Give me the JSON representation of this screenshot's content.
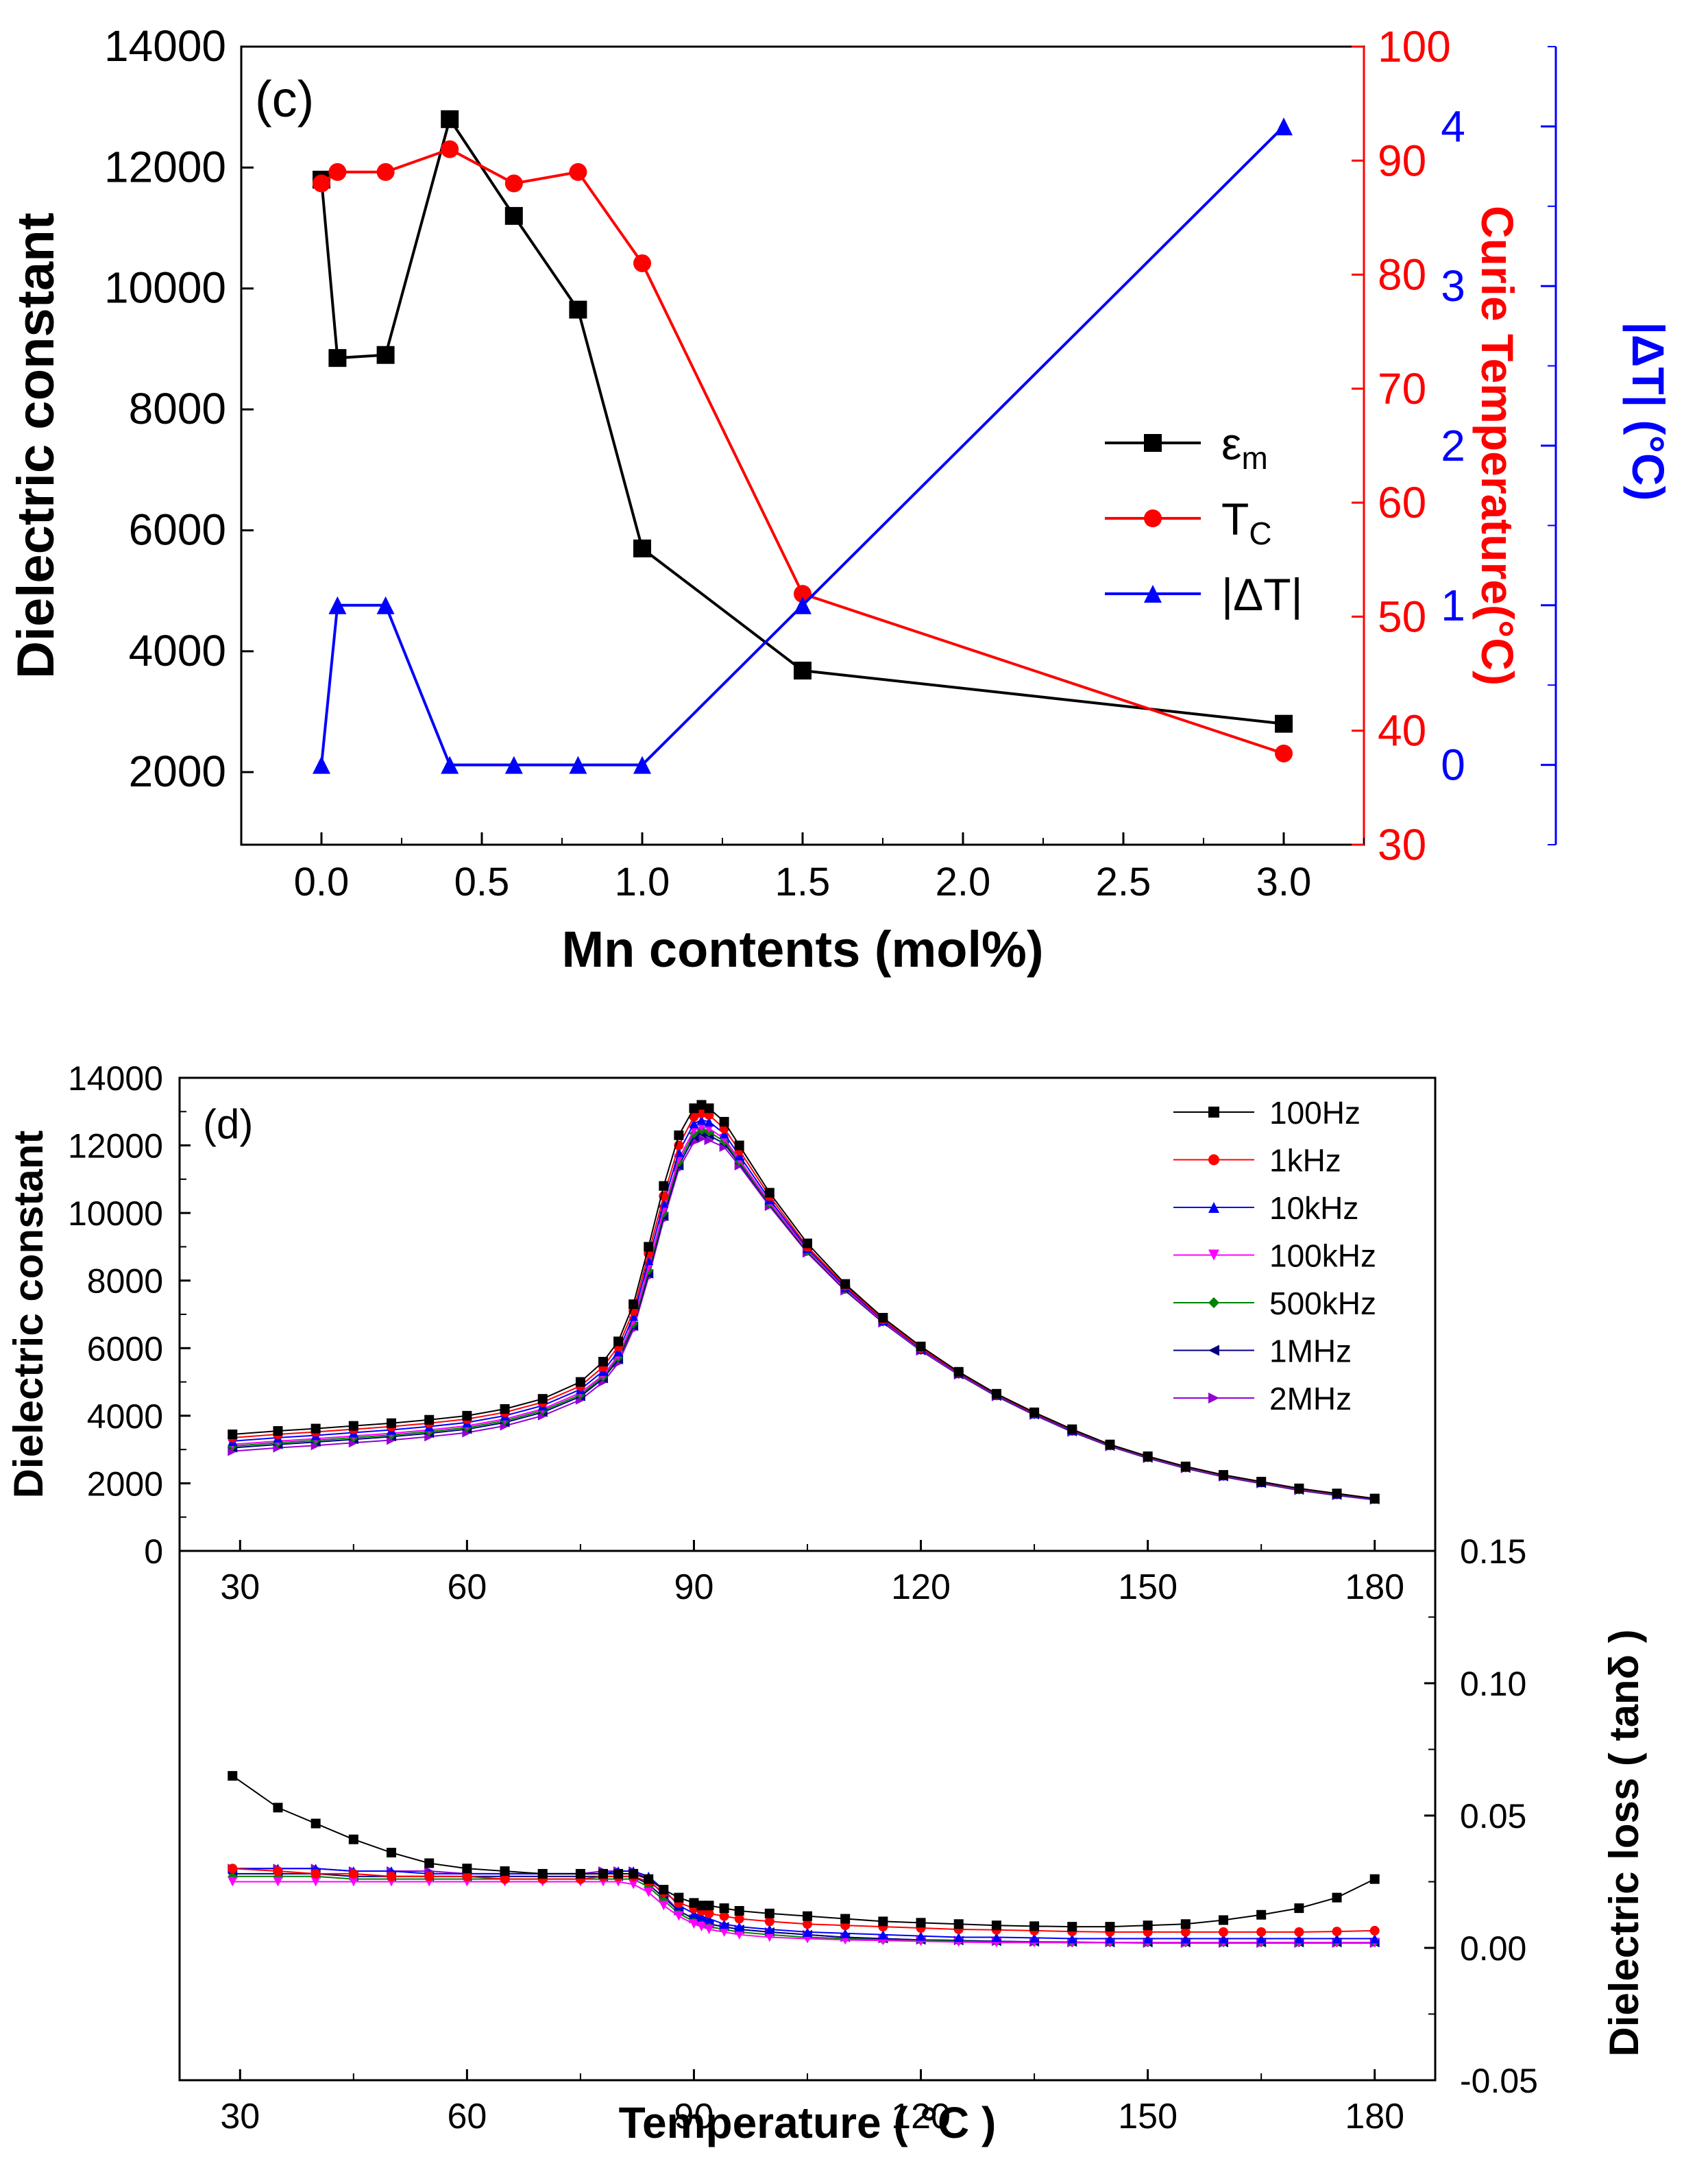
{
  "chart_data": [
    {
      "type": "line",
      "panel_label": "(c)",
      "xlabel": "Mn contents (mol%)",
      "xlim": [
        -0.25,
        3.25
      ],
      "xticks": [
        "0.0",
        "0.5",
        "1.0",
        "1.5",
        "2.0",
        "2.5",
        "3.0"
      ],
      "axes": {
        "left": {
          "label": "Dielectric constant",
          "ylim": [
            800,
            14000
          ],
          "ticks": [
            "2000",
            "4000",
            "6000",
            "8000",
            "10000",
            "12000",
            "14000"
          ],
          "color": "#000000"
        },
        "right1": {
          "label": "Curie Temperature(°C)",
          "ylim": [
            30,
            100
          ],
          "ticks": [
            "30",
            "40",
            "50",
            "60",
            "70",
            "80",
            "90",
            "100"
          ],
          "color": "#ff0000"
        },
        "right2": {
          "label": "|ΔT| (°C)",
          "ylim": [
            -0.5,
            4.5
          ],
          "ticks": [
            "0",
            "1",
            "2",
            "3",
            "4"
          ],
          "color": "#0000ff"
        }
      },
      "series": [
        {
          "name": "εm",
          "axis": "left",
          "color": "#000000",
          "marker": "square",
          "x": [
            0.0,
            0.05,
            0.2,
            0.4,
            0.6,
            0.8,
            1.0,
            1.5,
            3.0
          ],
          "y": [
            11800,
            8850,
            8900,
            12800,
            11200,
            9650,
            5700,
            3680,
            2800
          ]
        },
        {
          "name": "TC",
          "axis": "right1",
          "color": "#ff0000",
          "marker": "circle",
          "x": [
            0.0,
            0.05,
            0.2,
            0.4,
            0.6,
            0.8,
            1.0,
            1.5,
            3.0
          ],
          "y": [
            88,
            89,
            89,
            91,
            88,
            89,
            81,
            52,
            38
          ]
        },
        {
          "name": "|ΔT|",
          "axis": "right2",
          "color": "#0000ff",
          "marker": "triangle",
          "x": [
            0.0,
            0.05,
            0.2,
            0.4,
            0.6,
            0.8,
            1.0,
            1.5,
            3.0
          ],
          "y": [
            0,
            1,
            1,
            0,
            0,
            0,
            0,
            1,
            4
          ]
        }
      ],
      "legend": {
        "placement": "right-middle",
        "entries": [
          "εm",
          "TC",
          "|ΔT|"
        ]
      }
    },
    {
      "type": "line",
      "panel_label": "(d)",
      "xlabel": "Temperature ( °C )",
      "xlim": [
        22,
        188
      ],
      "xticks": [
        "30",
        "60",
        "90",
        "120",
        "150",
        "180"
      ],
      "top": {
        "ylabel": "Dielectric constant",
        "ylim": [
          0,
          14000
        ],
        "ticks": [
          "0",
          "2000",
          "4000",
          "6000",
          "8000",
          "10000",
          "12000",
          "14000"
        ]
      },
      "bottom": {
        "ylabel": "Dielectric loss ( tanδ )",
        "ylim": [
          -0.05,
          0.15
        ],
        "ticks": [
          "-0.05",
          "0.00",
          "0.05",
          "0.10",
          "0.15"
        ]
      },
      "x": [
        29,
        35,
        40,
        45,
        50,
        55,
        60,
        65,
        70,
        75,
        78,
        80,
        82,
        84,
        86,
        88,
        90,
        91,
        92,
        94,
        96,
        100,
        105,
        110,
        115,
        120,
        125,
        130,
        135,
        140,
        145,
        150,
        155,
        160,
        165,
        170,
        175,
        180
      ],
      "series": [
        {
          "name": "100Hz",
          "color": "#000000",
          "marker": "square",
          "eps": [
            3450,
            3550,
            3620,
            3700,
            3780,
            3880,
            4000,
            4200,
            4500,
            5000,
            5600,
            6200,
            7300,
            9000,
            10800,
            12300,
            13100,
            13200,
            13100,
            12700,
            12000,
            10600,
            9100,
            7900,
            6900,
            6050,
            5300,
            4650,
            4100,
            3600,
            3150,
            2800,
            2500,
            2250,
            2050,
            1850,
            1700,
            1550
          ],
          "loss": [
            0.065,
            0.053,
            0.047,
            0.041,
            0.036,
            0.032,
            0.03,
            0.029,
            0.028,
            0.028,
            0.028,
            0.028,
            0.028,
            0.026,
            0.022,
            0.019,
            0.017,
            0.016,
            0.016,
            0.015,
            0.014,
            0.013,
            0.012,
            0.011,
            0.01,
            0.0095,
            0.009,
            0.0085,
            0.0082,
            0.008,
            0.008,
            0.0085,
            0.009,
            0.0105,
            0.0125,
            0.015,
            0.019,
            0.026
          ]
        },
        {
          "name": "1kHz",
          "color": "#ff0000",
          "marker": "circle",
          "eps": [
            3350,
            3450,
            3520,
            3600,
            3680,
            3780,
            3900,
            4100,
            4400,
            4880,
            5450,
            6050,
            7100,
            8800,
            10500,
            12000,
            12850,
            12950,
            12900,
            12500,
            11850,
            10500,
            9000,
            7850,
            6850,
            6000,
            5280,
            4630,
            4080,
            3580,
            3140,
            2790,
            2490,
            2240,
            2040,
            1840,
            1690,
            1550
          ],
          "loss": [
            0.03,
            0.029,
            0.028,
            0.028,
            0.027,
            0.027,
            0.027,
            0.026,
            0.026,
            0.026,
            0.027,
            0.027,
            0.027,
            0.025,
            0.021,
            0.017,
            0.015,
            0.014,
            0.013,
            0.012,
            0.011,
            0.01,
            0.009,
            0.0085,
            0.008,
            0.0075,
            0.007,
            0.0068,
            0.0065,
            0.0062,
            0.006,
            0.006,
            0.006,
            0.006,
            0.006,
            0.006,
            0.0062,
            0.0065
          ]
        },
        {
          "name": "10kHz",
          "color": "#0000ff",
          "marker": "triangle",
          "eps": [
            3250,
            3350,
            3420,
            3500,
            3580,
            3680,
            3800,
            4000,
            4300,
            4780,
            5320,
            5900,
            6950,
            8600,
            10300,
            11800,
            12650,
            12750,
            12700,
            12350,
            11700,
            10400,
            8950,
            7800,
            6820,
            5970,
            5260,
            4610,
            4060,
            3560,
            3130,
            2780,
            2480,
            2230,
            2030,
            1830,
            1680,
            1540
          ],
          "loss": [
            0.03,
            0.03,
            0.03,
            0.029,
            0.029,
            0.028,
            0.028,
            0.028,
            0.028,
            0.028,
            0.028,
            0.029,
            0.029,
            0.027,
            0.022,
            0.016,
            0.013,
            0.012,
            0.011,
            0.009,
            0.008,
            0.007,
            0.006,
            0.0055,
            0.005,
            0.0045,
            0.004,
            0.004,
            0.0038,
            0.0035,
            0.0035,
            0.0035,
            0.0035,
            0.0035,
            0.0035,
            0.0035,
            0.0035,
            0.0035
          ]
        },
        {
          "name": "100kHz",
          "color": "#ff00ff",
          "marker": "triangle-down",
          "eps": [
            3150,
            3250,
            3320,
            3400,
            3480,
            3580,
            3700,
            3900,
            4200,
            4680,
            5200,
            5780,
            6800,
            8400,
            10100,
            11600,
            12450,
            12550,
            12500,
            12200,
            11580,
            10320,
            8900,
            7760,
            6790,
            5950,
            5240,
            4600,
            4050,
            3550,
            3120,
            2770,
            2470,
            2220,
            2020,
            1820,
            1670,
            1530
          ],
          "loss": [
            0.025,
            0.025,
            0.025,
            0.025,
            0.025,
            0.025,
            0.025,
            0.025,
            0.025,
            0.025,
            0.025,
            0.025,
            0.024,
            0.021,
            0.016,
            0.012,
            0.009,
            0.008,
            0.007,
            0.006,
            0.005,
            0.004,
            0.0035,
            0.003,
            0.0028,
            0.0025,
            0.0022,
            0.002,
            0.002,
            0.002,
            0.002,
            0.002,
            0.002,
            0.002,
            0.002,
            0.002,
            0.002,
            0.002
          ]
        },
        {
          "name": "500kHz",
          "color": "#008000",
          "marker": "diamond",
          "eps": [
            3100,
            3200,
            3270,
            3350,
            3430,
            3530,
            3650,
            3850,
            4150,
            4620,
            5150,
            5720,
            6720,
            8300,
            10000,
            11500,
            12350,
            12450,
            12400,
            12120,
            11520,
            10280,
            8870,
            7740,
            6780,
            5940,
            5230,
            4590,
            4040,
            3540,
            3110,
            2760,
            2460,
            2210,
            2010,
            1810,
            1660,
            1530
          ],
          "loss": [
            0.027,
            0.027,
            0.027,
            0.026,
            0.026,
            0.026,
            0.026,
            0.026,
            0.026,
            0.026,
            0.026,
            0.026,
            0.026,
            0.023,
            0.018,
            0.013,
            0.01,
            0.009,
            0.008,
            0.007,
            0.006,
            0.005,
            0.004,
            0.0035,
            0.003,
            0.0028,
            0.0025,
            0.0023,
            0.0022,
            0.002,
            0.002,
            0.002,
            0.002,
            0.002,
            0.002,
            0.002,
            0.002,
            0.002
          ]
        },
        {
          "name": "1MHz",
          "color": "#000080",
          "marker": "triangle-left",
          "eps": [
            3050,
            3150,
            3220,
            3300,
            3380,
            3480,
            3600,
            3800,
            4100,
            4570,
            5100,
            5660,
            6650,
            8200,
            9900,
            11400,
            12250,
            12350,
            12300,
            12050,
            11470,
            10250,
            8850,
            7720,
            6770,
            5930,
            5220,
            4580,
            4030,
            3530,
            3100,
            2750,
            2450,
            2200,
            2000,
            1800,
            1650,
            1520
          ],
          "loss": [
            0.028,
            0.028,
            0.028,
            0.027,
            0.027,
            0.027,
            0.027,
            0.027,
            0.027,
            0.027,
            0.027,
            0.027,
            0.027,
            0.024,
            0.019,
            0.014,
            0.011,
            0.01,
            0.009,
            0.008,
            0.007,
            0.006,
            0.005,
            0.004,
            0.0035,
            0.003,
            0.0028,
            0.0025,
            0.0023,
            0.0022,
            0.002,
            0.002,
            0.002,
            0.002,
            0.002,
            0.002,
            0.002,
            0.002
          ]
        },
        {
          "name": "2MHz",
          "color": "#9400d3",
          "marker": "triangle-right",
          "eps": [
            2950,
            3050,
            3120,
            3200,
            3280,
            3380,
            3500,
            3700,
            4000,
            4470,
            5000,
            5560,
            6550,
            8100,
            9800,
            11300,
            12100,
            12200,
            12150,
            11950,
            11400,
            10200,
            8820,
            7700,
            6750,
            5920,
            5210,
            4570,
            4020,
            3520,
            3090,
            2740,
            2440,
            2190,
            1990,
            1790,
            1640,
            1510
          ],
          "loss": [
            0.03,
            0.03,
            0.03,
            0.029,
            0.029,
            0.029,
            0.028,
            0.028,
            0.028,
            0.028,
            0.029,
            0.029,
            0.029,
            0.026,
            0.02,
            0.014,
            0.011,
            0.01,
            0.009,
            0.008,
            0.007,
            0.006,
            0.005,
            0.004,
            0.0035,
            0.003,
            0.0028,
            0.0025,
            0.0022,
            0.002,
            0.002,
            0.0018,
            0.0018,
            0.0018,
            0.0018,
            0.0018,
            0.0018,
            0.0018
          ]
        }
      ],
      "legend": {
        "placement": "top-right",
        "entries": [
          "100Hz",
          "1kHz",
          "10kHz",
          "100kHz",
          "500kHz",
          "1MHz",
          "2MHz"
        ]
      }
    }
  ]
}
